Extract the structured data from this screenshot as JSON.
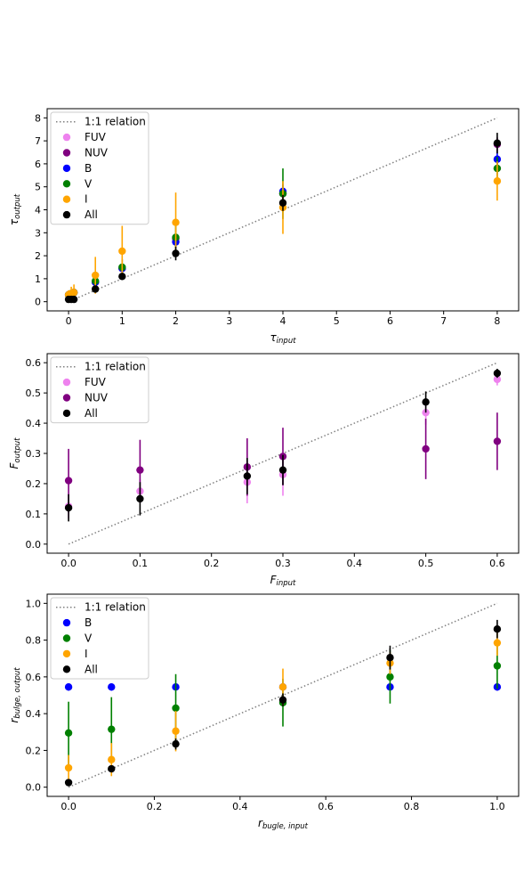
{
  "chart_data": [
    {
      "type": "scatter",
      "xlabel_base": "τ",
      "xlabel_sub": "input",
      "ylabel_base": "τ",
      "ylabel_sub": "output",
      "xlim": [
        -0.4,
        8.4
      ],
      "ylim": [
        -0.4,
        8.4
      ],
      "xticks": [
        0,
        1,
        2,
        3,
        4,
        5,
        6,
        7,
        8
      ],
      "yticks": [
        0,
        1,
        2,
        3,
        4,
        5,
        6,
        7,
        8
      ],
      "xtick_labels": [
        "0",
        "1",
        "2",
        "3",
        "4",
        "5",
        "6",
        "7",
        "8"
      ],
      "ytick_labels": [
        "0",
        "1",
        "2",
        "3",
        "4",
        "5",
        "6",
        "7",
        "8"
      ],
      "grid": false,
      "legend_position": "upper-left",
      "reference_line": {
        "name": "1:1 relation",
        "x": [
          0,
          8
        ],
        "y": [
          0,
          8
        ],
        "color": "#808080",
        "style": "dotted"
      },
      "series": [
        {
          "name": "FUV",
          "color": "#ee82ee",
          "x": [
            0,
            0.05,
            0.1,
            0.5,
            1,
            2,
            4,
            8
          ],
          "y": [
            0.3,
            0.35,
            0.4,
            0.85,
            1.45,
            2.75,
            4.7,
            5.8
          ],
          "err": [
            0.1,
            0.1,
            0.1,
            0.1,
            0.1,
            0.15,
            0.2,
            0.3
          ]
        },
        {
          "name": "NUV",
          "color": "#800080",
          "x": [
            0,
            0.05,
            0.1,
            0.5,
            1,
            2,
            4,
            8
          ],
          "y": [
            0.3,
            0.35,
            0.4,
            0.85,
            1.45,
            2.75,
            4.7,
            6.85
          ],
          "err": [
            0.1,
            0.1,
            0.1,
            0.1,
            0.1,
            0.15,
            0.2,
            0.3
          ]
        },
        {
          "name": "B",
          "color": "#0000ff",
          "x": [
            0,
            0.05,
            0.1,
            0.5,
            1,
            2,
            4,
            8
          ],
          "y": [
            0.3,
            0.35,
            0.4,
            0.85,
            1.45,
            2.6,
            4.8,
            6.2
          ],
          "err": [
            0.1,
            0.1,
            0.1,
            0.15,
            0.15,
            0.2,
            0.3,
            0.35
          ]
        },
        {
          "name": "V",
          "color": "#008000",
          "x": [
            0,
            0.05,
            0.1,
            0.5,
            1,
            2,
            4,
            8
          ],
          "y": [
            0.3,
            0.35,
            0.4,
            0.9,
            1.5,
            2.8,
            4.7,
            5.8
          ],
          "err": [
            0.15,
            0.15,
            0.15,
            0.25,
            0.35,
            0.5,
            1.1,
            0.5
          ]
        },
        {
          "name": "I",
          "color": "#ffa500",
          "x": [
            0,
            0.05,
            0.1,
            0.5,
            1,
            2,
            4,
            8
          ],
          "y": [
            0.3,
            0.35,
            0.4,
            1.15,
            2.2,
            3.45,
            4.1,
            5.25
          ],
          "err": [
            0.2,
            0.3,
            0.35,
            0.8,
            1.1,
            1.3,
            1.15,
            0.85
          ]
        },
        {
          "name": "All",
          "color": "#000000",
          "x": [
            0,
            0.05,
            0.1,
            0.5,
            1,
            2,
            4,
            8
          ],
          "y": [
            0.1,
            0.1,
            0.1,
            0.55,
            1.1,
            2.1,
            4.3,
            6.9
          ],
          "err": [
            0.08,
            0.08,
            0.08,
            0.12,
            0.15,
            0.3,
            0.35,
            0.45
          ]
        }
      ]
    },
    {
      "type": "scatter",
      "xlabel_base": "F",
      "xlabel_sub": "input",
      "ylabel_base": "F",
      "ylabel_sub": "output",
      "xlim": [
        -0.03,
        0.63
      ],
      "ylim": [
        -0.03,
        0.63
      ],
      "xticks": [
        0,
        0.1,
        0.2,
        0.3,
        0.4,
        0.5,
        0.6
      ],
      "yticks": [
        0,
        0.1,
        0.2,
        0.3,
        0.4,
        0.5,
        0.6
      ],
      "xtick_labels": [
        "0.0",
        "0.1",
        "0.2",
        "0.3",
        "0.4",
        "0.5",
        "0.6"
      ],
      "ytick_labels": [
        "0.0",
        "0.1",
        "0.2",
        "0.3",
        "0.4",
        "0.5",
        "0.6"
      ],
      "grid": false,
      "legend_position": "upper-left",
      "reference_line": {
        "name": "1:1 relation",
        "x": [
          0,
          0.6
        ],
        "y": [
          0,
          0.6
        ],
        "color": "#808080",
        "style": "dotted"
      },
      "series": [
        {
          "name": "FUV",
          "color": "#ee82ee",
          "x": [
            0,
            0.1,
            0.25,
            0.3,
            0.5,
            0.6
          ],
          "y": [
            0.125,
            0.175,
            0.205,
            0.23,
            0.435,
            0.545
          ],
          "err": [
            0.04,
            0.04,
            0.07,
            0.07,
            0.04,
            0.02
          ]
        },
        {
          "name": "NUV",
          "color": "#800080",
          "x": [
            0,
            0.1,
            0.25,
            0.3,
            0.5,
            0.6
          ],
          "y": [
            0.21,
            0.245,
            0.255,
            0.29,
            0.315,
            0.34
          ],
          "err": [
            0.105,
            0.1,
            0.095,
            0.095,
            0.1,
            0.095
          ]
        },
        {
          "name": "All",
          "color": "#000000",
          "x": [
            0,
            0.1,
            0.25,
            0.3,
            0.5,
            0.6
          ],
          "y": [
            0.12,
            0.15,
            0.225,
            0.245,
            0.47,
            0.565
          ],
          "err": [
            0.045,
            0.055,
            0.06,
            0.05,
            0.035,
            0.015
          ]
        }
      ]
    },
    {
      "type": "scatter",
      "xlabel_base": "r",
      "xlabel_sub": "bugle, input",
      "ylabel_base": "r",
      "ylabel_sub": "bulge, output",
      "xlim": [
        -0.05,
        1.05
      ],
      "ylim": [
        -0.05,
        1.05
      ],
      "xticks": [
        0,
        0.2,
        0.4,
        0.6,
        0.8,
        1.0
      ],
      "yticks": [
        0,
        0.2,
        0.4,
        0.6,
        0.8,
        1.0
      ],
      "xtick_labels": [
        "0.0",
        "0.2",
        "0.4",
        "0.6",
        "0.8",
        "1.0"
      ],
      "ytick_labels": [
        "0.0",
        "0.2",
        "0.4",
        "0.6",
        "0.8",
        "1.0"
      ],
      "grid": false,
      "legend_position": "upper-left",
      "reference_line": {
        "name": "1:1 relation",
        "x": [
          0,
          1
        ],
        "y": [
          0,
          1
        ],
        "color": "#808080",
        "style": "dotted"
      },
      "series": [
        {
          "name": "B",
          "color": "#0000ff",
          "x": [
            0,
            0.1,
            0.25,
            0.5,
            0.75,
            1.0
          ],
          "y": [
            0.545,
            0.545,
            0.545,
            0.545,
            0.545,
            0.545
          ],
          "err": [
            0.02,
            0.02,
            0.02,
            0.02,
            0.02,
            0.02
          ]
        },
        {
          "name": "V",
          "color": "#008000",
          "x": [
            0,
            0.1,
            0.25,
            0.5,
            0.75,
            1.0
          ],
          "y": [
            0.295,
            0.315,
            0.43,
            0.46,
            0.6,
            0.66
          ],
          "err": [
            0.17,
            0.175,
            0.185,
            0.13,
            0.145,
            0.125
          ]
        },
        {
          "name": "I",
          "color": "#ffa500",
          "x": [
            0,
            0.1,
            0.25,
            0.5,
            0.75,
            1.0
          ],
          "y": [
            0.105,
            0.15,
            0.305,
            0.545,
            0.675,
            0.785
          ],
          "err": [
            0.07,
            0.09,
            0.11,
            0.1,
            0.06,
            0.07
          ]
        },
        {
          "name": "All",
          "color": "#000000",
          "x": [
            0,
            0.1,
            0.25,
            0.5,
            0.75,
            1.0
          ],
          "y": [
            0.025,
            0.1,
            0.235,
            0.475,
            0.705,
            0.86
          ],
          "err": [
            0.012,
            0.015,
            0.03,
            0.035,
            0.065,
            0.05
          ]
        }
      ]
    }
  ]
}
